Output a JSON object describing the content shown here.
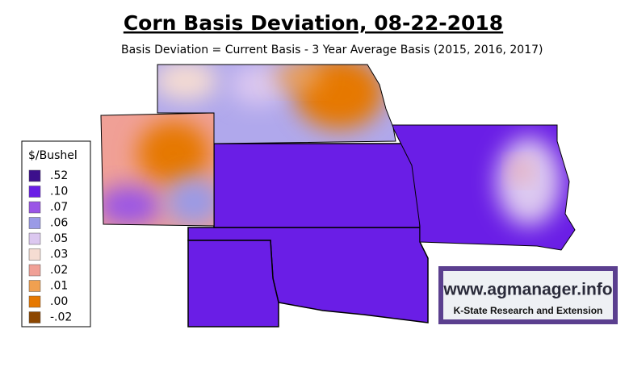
{
  "header": {
    "title": "Corn Basis Deviation, 08-22-2018",
    "subtitle": "Basis Deviation = Current Basis - 3 Year Average Basis (2015, 2016, 2017)"
  },
  "legend": {
    "title": "$/Bushel",
    "items": [
      {
        "label": ".52",
        "color": "#3c0f8c"
      },
      {
        "label": ".10",
        "color": "#6a1ee6"
      },
      {
        "label": ".07",
        "color": "#9a55e6"
      },
      {
        "label": ".06",
        "color": "#9a9ae6"
      },
      {
        "label": ".05",
        "color": "#dcc8f0"
      },
      {
        "label": ".03",
        "color": "#f5dcd2"
      },
      {
        "label": ".02",
        "color": "#f0a096"
      },
      {
        "label": ".01",
        "color": "#f0a050"
      },
      {
        "label": ".00",
        "color": "#e67800"
      },
      {
        "label": "-.02",
        "color": "#8c4600"
      }
    ]
  },
  "logo": {
    "url": "www.agmanager.info",
    "org": "K-State Research and Extension"
  }
}
